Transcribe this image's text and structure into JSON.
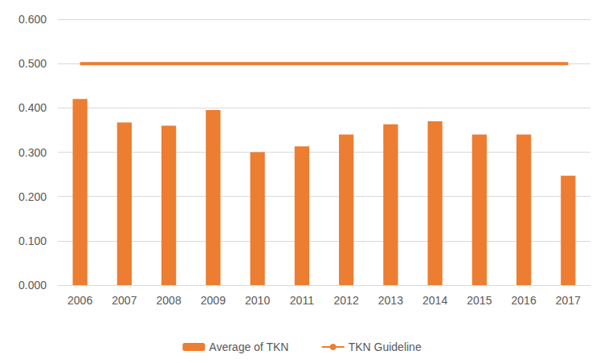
{
  "chart_data": {
    "type": "bar",
    "categories": [
      "2006",
      "2007",
      "2008",
      "2009",
      "2010",
      "2011",
      "2012",
      "2013",
      "2014",
      "2015",
      "2016",
      "2017"
    ],
    "series": [
      {
        "name": "Average of TKN",
        "type": "bar",
        "color": "#ed7d31",
        "values": [
          0.42,
          0.367,
          0.36,
          0.395,
          0.3,
          0.313,
          0.34,
          0.363,
          0.37,
          0.34,
          0.34,
          0.247
        ]
      },
      {
        "name": "TKN Guideline",
        "type": "line",
        "color": "#ed7d31",
        "marker": "none",
        "values": [
          0.5,
          0.5,
          0.5,
          0.5,
          0.5,
          0.5,
          0.5,
          0.5,
          0.5,
          0.5,
          0.5,
          0.5
        ]
      }
    ],
    "ylim": [
      0,
      0.6
    ],
    "yticks": [
      {
        "value": 0,
        "label": "0.000"
      },
      {
        "value": 0.1,
        "label": "0.100"
      },
      {
        "value": 0.2,
        "label": "0.200"
      },
      {
        "value": 0.3,
        "label": "0.300"
      },
      {
        "value": 0.4,
        "label": "0.400"
      },
      {
        "value": 0.5,
        "label": "0.500"
      },
      {
        "value": 0.6,
        "label": "0.600"
      }
    ],
    "grid": true,
    "legend": "bottom"
  }
}
